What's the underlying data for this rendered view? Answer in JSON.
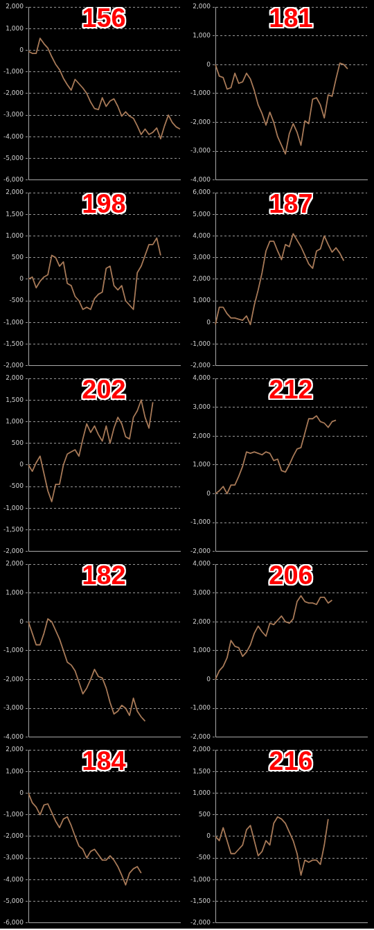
{
  "chart_data": [
    {
      "type": "line",
      "title": "156",
      "categories": [
        null,
        null,
        null,
        null,
        null,
        null,
        null,
        null,
        null,
        null,
        null,
        null,
        null,
        null,
        null,
        null,
        null,
        null,
        null,
        null,
        null,
        null,
        null,
        null,
        null,
        null,
        null,
        null,
        null,
        null,
        null,
        null,
        null,
        null,
        null,
        null,
        null,
        null,
        null,
        null
      ],
      "series": [
        {
          "color": "#a87a58",
          "values": [
            -50,
            -150,
            -150,
            550,
            300,
            100,
            -300,
            -650,
            -900,
            -1300,
            -1600,
            -1850,
            -1350,
            -1550,
            -1750,
            -2000,
            -2400,
            -2700,
            -2750,
            -2200,
            -2600,
            -2350,
            -2250,
            -2600,
            -3050,
            -2850,
            -3050,
            -3150,
            -3500,
            -3900,
            -3650,
            -3900,
            -3800,
            -3600,
            -4100,
            -3500,
            -3000,
            -3350,
            -3550,
            -3650
          ]
        }
      ],
      "ylim": [
        -6000,
        2000
      ],
      "yticks": [
        {
          "value": -6000,
          "label": "-6,000"
        },
        {
          "value": -5000,
          "label": "-5,000"
        },
        {
          "value": -4000,
          "label": "-4,000"
        },
        {
          "value": -3000,
          "label": "-3,000"
        },
        {
          "value": -2000,
          "label": "-2,000"
        },
        {
          "value": -1000,
          "label": "-1,000"
        },
        0,
        {
          "value": 1000,
          "label": "1,000"
        },
        {
          "value": 2000,
          "label": "2,000"
        }
      ],
      "grid": "y",
      "legend": false,
      "tick_labels": "y",
      "marker": "none",
      "line_style": "solid"
    },
    {
      "type": "line",
      "title": "181",
      "categories": [
        null,
        null,
        null,
        null,
        null,
        null,
        null,
        null,
        null,
        null,
        null,
        null,
        null,
        null,
        null,
        null,
        null,
        null,
        null,
        null,
        null,
        null,
        null,
        null,
        null,
        null,
        null,
        null,
        null,
        null,
        null,
        null,
        null,
        null,
        null,
        null,
        null,
        null,
        null,
        null
      ],
      "series": [
        {
          "color": "#a87a58",
          "values": [
            0,
            -400,
            -450,
            -850,
            -800,
            -300,
            -650,
            -600,
            -300,
            -500,
            -900,
            -1400,
            -1700,
            -2100,
            -1650,
            -2000,
            -2500,
            -2800,
            -3100,
            -2400,
            -2050,
            -2350,
            -2800,
            -1950,
            -2050,
            -1200,
            -1150,
            -1400,
            -1850,
            -1050,
            -1100,
            -500,
            50,
            0,
            -150,
            null,
            null,
            null,
            null,
            null
          ]
        }
      ],
      "ylim": [
        -4000,
        2000
      ],
      "yticks": [
        {
          "value": -4000,
          "label": "-4,000"
        },
        {
          "value": -3000,
          "label": "-3,000"
        },
        {
          "value": -2000,
          "label": "-2,000"
        },
        {
          "value": -1000,
          "label": "-1,000"
        },
        0,
        {
          "value": 1000,
          "label": "1,000"
        },
        {
          "value": 2000,
          "label": "2,000"
        }
      ],
      "grid": "y",
      "legend": false,
      "tick_labels": "y",
      "marker": "none",
      "line_style": "solid"
    },
    {
      "type": "line",
      "title": "198",
      "categories": [
        null,
        null,
        null,
        null,
        null,
        null,
        null,
        null,
        null,
        null,
        null,
        null,
        null,
        null,
        null,
        null,
        null,
        null,
        null,
        null,
        null,
        null,
        null,
        null,
        null,
        null,
        null,
        null,
        null,
        null,
        null,
        null,
        null,
        null,
        null,
        null,
        null,
        null,
        null,
        null
      ],
      "series": [
        {
          "color": "#a87a58",
          "values": [
            0,
            50,
            -200,
            -50,
            50,
            100,
            550,
            500,
            300,
            400,
            -100,
            -150,
            -400,
            -500,
            -700,
            -650,
            -700,
            -450,
            -350,
            -300,
            250,
            300,
            -150,
            -250,
            -150,
            -500,
            -600,
            -700,
            150,
            300,
            550,
            800,
            800,
            950,
            550,
            null,
            null,
            null,
            null,
            null
          ]
        }
      ],
      "ylim": [
        -2000,
        2000
      ],
      "yticks": [
        {
          "value": -2000,
          "label": "-2,000"
        },
        {
          "value": -1500,
          "label": "-1,500"
        },
        {
          "value": -1000,
          "label": "-1,000"
        },
        -500,
        0,
        500,
        {
          "value": 1000,
          "label": "1,000"
        },
        {
          "value": 1500,
          "label": "1,500"
        },
        {
          "value": 2000,
          "label": "2,000"
        }
      ],
      "grid": "y",
      "legend": false,
      "tick_labels": "y",
      "marker": "none",
      "line_style": "solid"
    },
    {
      "type": "line",
      "title": "187",
      "categories": [
        null,
        null,
        null,
        null,
        null,
        null,
        null,
        null,
        null,
        null,
        null,
        null,
        null,
        null,
        null,
        null,
        null,
        null,
        null,
        null,
        null,
        null,
        null,
        null,
        null,
        null,
        null,
        null,
        null,
        null,
        null,
        null,
        null,
        null,
        null,
        null,
        null,
        null,
        null,
        null
      ],
      "series": [
        {
          "color": "#a87a58",
          "values": [
            -100,
            700,
            700,
            400,
            200,
            200,
            150,
            100,
            300,
            -100,
            800,
            1500,
            2300,
            3300,
            3750,
            3750,
            3300,
            2900,
            3600,
            3500,
            4100,
            3800,
            3500,
            3100,
            2700,
            2500,
            3300,
            3400,
            4000,
            3600,
            3250,
            3450,
            3200,
            2850,
            null,
            null,
            null,
            null,
            null,
            null
          ]
        }
      ],
      "ylim": [
        -2000,
        6000
      ],
      "yticks": [
        {
          "value": -2000,
          "label": "-2,000"
        },
        {
          "value": -1000,
          "label": "-1,000"
        },
        0,
        {
          "value": 1000,
          "label": "1,000"
        },
        {
          "value": 2000,
          "label": "2,000"
        },
        {
          "value": 3000,
          "label": "3,000"
        },
        {
          "value": 4000,
          "label": "4,000"
        },
        {
          "value": 5000,
          "label": "5,000"
        },
        {
          "value": 6000,
          "label": "6,000"
        }
      ],
      "grid": "y",
      "legend": false,
      "tick_labels": "y",
      "marker": "none",
      "line_style": "solid"
    },
    {
      "type": "line",
      "title": "202",
      "categories": [
        null,
        null,
        null,
        null,
        null,
        null,
        null,
        null,
        null,
        null,
        null,
        null,
        null,
        null,
        null,
        null,
        null,
        null,
        null,
        null,
        null,
        null,
        null,
        null,
        null,
        null,
        null,
        null,
        null,
        null,
        null,
        null,
        null,
        null,
        null,
        null,
        null,
        null,
        null,
        null
      ],
      "series": [
        {
          "color": "#a87a58",
          "values": [
            0,
            -150,
            50,
            200,
            -200,
            -600,
            -850,
            -450,
            -450,
            0,
            250,
            300,
            350,
            200,
            600,
            950,
            750,
            900,
            700,
            550,
            900,
            500,
            850,
            1100,
            950,
            650,
            600,
            1100,
            1250,
            1500,
            1100,
            850,
            1450,
            null,
            null,
            null,
            null,
            null,
            null,
            null
          ]
        }
      ],
      "ylim": [
        -2000,
        2000
      ],
      "yticks": [
        {
          "value": -2000,
          "label": "-2,000"
        },
        {
          "value": -1500,
          "label": "-1,500"
        },
        {
          "value": -1000,
          "label": "-1,000"
        },
        -500,
        0,
        500,
        {
          "value": 1000,
          "label": "1,000"
        },
        {
          "value": 1500,
          "label": "1,500"
        },
        {
          "value": 2000,
          "label": "2,000"
        }
      ],
      "grid": "y",
      "legend": false,
      "tick_labels": "y",
      "marker": "none",
      "line_style": "solid"
    },
    {
      "type": "line",
      "title": "212",
      "categories": [
        null,
        null,
        null,
        null,
        null,
        null,
        null,
        null,
        null,
        null,
        null,
        null,
        null,
        null,
        null,
        null,
        null,
        null,
        null,
        null,
        null,
        null,
        null,
        null,
        null,
        null,
        null,
        null,
        null,
        null,
        null,
        null,
        null,
        null,
        null,
        null,
        null,
        null,
        null,
        null
      ],
      "series": [
        {
          "color": "#a87a58",
          "values": [
            0,
            100,
            250,
            0,
            300,
            300,
            600,
            950,
            1450,
            1400,
            1450,
            1400,
            1350,
            1450,
            1400,
            1150,
            1200,
            800,
            750,
            1000,
            1300,
            1550,
            1600,
            2100,
            2600,
            2600,
            2700,
            2500,
            2450,
            2300,
            2500,
            2550,
            null,
            null,
            null,
            null,
            null,
            null,
            null,
            null
          ]
        }
      ],
      "ylim": [
        -2000,
        4000
      ],
      "yticks": [
        {
          "value": -2000,
          "label": "-2,000"
        },
        {
          "value": -1000,
          "label": "-1,000"
        },
        0,
        {
          "value": 1000,
          "label": "1,000"
        },
        {
          "value": 2000,
          "label": "2,000"
        },
        {
          "value": 3000,
          "label": "3,000"
        },
        {
          "value": 4000,
          "label": "4,000"
        }
      ],
      "grid": "y",
      "legend": false,
      "tick_labels": "y",
      "marker": "none",
      "line_style": "solid"
    },
    {
      "type": "line",
      "title": "182",
      "categories": [
        null,
        null,
        null,
        null,
        null,
        null,
        null,
        null,
        null,
        null,
        null,
        null,
        null,
        null,
        null,
        null,
        null,
        null,
        null,
        null,
        null,
        null,
        null,
        null,
        null,
        null,
        null,
        null,
        null,
        null,
        null,
        null,
        null,
        null,
        null,
        null,
        null,
        null,
        null,
        null
      ],
      "series": [
        {
          "color": "#a87a58",
          "values": [
            0,
            -400,
            -800,
            -800,
            -400,
            100,
            0,
            -300,
            -600,
            -1000,
            -1400,
            -1500,
            -1700,
            -2100,
            -2500,
            -2300,
            -2000,
            -1650,
            -1900,
            -1950,
            -2300,
            -2800,
            -3200,
            -3100,
            -2900,
            -3000,
            -3250,
            -2650,
            -3100,
            -3300,
            -3450,
            null,
            null,
            null,
            null,
            null,
            null,
            null,
            null,
            null
          ]
        }
      ],
      "ylim": [
        -4000,
        2000
      ],
      "yticks": [
        {
          "value": -4000,
          "label": "-4,000"
        },
        {
          "value": -3000,
          "label": "-3,000"
        },
        {
          "value": -2000,
          "label": "-2,000"
        },
        {
          "value": -1000,
          "label": "-1,000"
        },
        0,
        {
          "value": 1000,
          "label": "1,000"
        },
        {
          "value": 2000,
          "label": "2,000"
        }
      ],
      "grid": "y",
      "legend": false,
      "tick_labels": "y",
      "marker": "none",
      "line_style": "solid"
    },
    {
      "type": "line",
      "title": "206",
      "categories": [
        null,
        null,
        null,
        null,
        null,
        null,
        null,
        null,
        null,
        null,
        null,
        null,
        null,
        null,
        null,
        null,
        null,
        null,
        null,
        null,
        null,
        null,
        null,
        null,
        null,
        null,
        null,
        null,
        null,
        null,
        null,
        null,
        null,
        null,
        null,
        null,
        null,
        null,
        null,
        null
      ],
      "series": [
        {
          "color": "#a87a58",
          "values": [
            0,
            300,
            450,
            750,
            1350,
            1150,
            1100,
            800,
            950,
            1200,
            1600,
            1850,
            1650,
            1500,
            1950,
            1900,
            2050,
            2200,
            2000,
            1950,
            2100,
            2700,
            2900,
            2700,
            2650,
            2650,
            2600,
            2850,
            2850,
            2650,
            2750,
            null,
            null,
            null,
            null,
            null,
            null,
            null,
            null,
            null
          ]
        }
      ],
      "ylim": [
        -2000,
        4000
      ],
      "yticks": [
        {
          "value": -2000,
          "label": "-2,000"
        },
        {
          "value": -1000,
          "label": "-1,000"
        },
        0,
        {
          "value": 1000,
          "label": "1,000"
        },
        {
          "value": 2000,
          "label": "2,000"
        },
        {
          "value": 3000,
          "label": "3,000"
        },
        {
          "value": 4000,
          "label": "4,000"
        }
      ],
      "grid": "y",
      "legend": false,
      "tick_labels": "y",
      "marker": "none",
      "line_style": "solid"
    },
    {
      "type": "line",
      "title": "184",
      "categories": [
        null,
        null,
        null,
        null,
        null,
        null,
        null,
        null,
        null,
        null,
        null,
        null,
        null,
        null,
        null,
        null,
        null,
        null,
        null,
        null,
        null,
        null,
        null,
        null,
        null,
        null,
        null,
        null,
        null,
        null,
        null,
        null,
        null,
        null,
        null,
        null,
        null,
        null,
        null,
        null
      ],
      "series": [
        {
          "color": "#a87a58",
          "values": [
            0,
            -450,
            -650,
            -1000,
            -550,
            -500,
            -900,
            -1300,
            -1600,
            -1200,
            -1100,
            -1500,
            -2000,
            -2450,
            -2600,
            -3000,
            -2700,
            -2600,
            -2850,
            -3100,
            -3100,
            -2900,
            -3100,
            -3400,
            -3800,
            -4250,
            -3700,
            -3500,
            -3400,
            -3700,
            null,
            null,
            null,
            null,
            null,
            null,
            null,
            null,
            null,
            null
          ]
        }
      ],
      "ylim": [
        -6000,
        2000
      ],
      "yticks": [
        {
          "value": -6000,
          "label": "-6,000"
        },
        {
          "value": -5000,
          "label": "-5,000"
        },
        {
          "value": -4000,
          "label": "-4,000"
        },
        {
          "value": -3000,
          "label": "-3,000"
        },
        {
          "value": -2000,
          "label": "-2,000"
        },
        {
          "value": -1000,
          "label": "-1,000"
        },
        0,
        {
          "value": 1000,
          "label": "1,000"
        },
        {
          "value": 2000,
          "label": "2,000"
        }
      ],
      "grid": "y",
      "legend": false,
      "tick_labels": "y",
      "marker": "none",
      "line_style": "solid"
    },
    {
      "type": "line",
      "title": "216",
      "categories": [
        null,
        null,
        null,
        null,
        null,
        null,
        null,
        null,
        null,
        null,
        null,
        null,
        null,
        null,
        null,
        null,
        null,
        null,
        null,
        null,
        null,
        null,
        null,
        null,
        null,
        null,
        null,
        null,
        null,
        null,
        null,
        null,
        null,
        null,
        null,
        null,
        null,
        null,
        null,
        null
      ],
      "series": [
        {
          "color": "#a87a58",
          "values": [
            0,
            -100,
            200,
            -100,
            -400,
            -400,
            -300,
            -200,
            150,
            250,
            -100,
            -450,
            -350,
            -100,
            -200,
            300,
            450,
            400,
            300,
            100,
            -100,
            -400,
            -900,
            -550,
            -600,
            -550,
            -550,
            -650,
            -200,
            400,
            null,
            null,
            null,
            null,
            null,
            null,
            null,
            null,
            null,
            null
          ]
        }
      ],
      "ylim": [
        -2000,
        2000
      ],
      "yticks": [
        {
          "value": -2000,
          "label": "-2,000"
        },
        {
          "value": -1500,
          "label": "-1,500"
        },
        {
          "value": -1000,
          "label": "-1,000"
        },
        -500,
        0,
        500,
        {
          "value": 1000,
          "label": "1,000"
        },
        {
          "value": 1500,
          "label": "1,500"
        },
        {
          "value": 2000,
          "label": "2,000"
        }
      ],
      "grid": "y",
      "legend": false,
      "tick_labels": "y",
      "marker": "none",
      "line_style": "solid"
    }
  ]
}
